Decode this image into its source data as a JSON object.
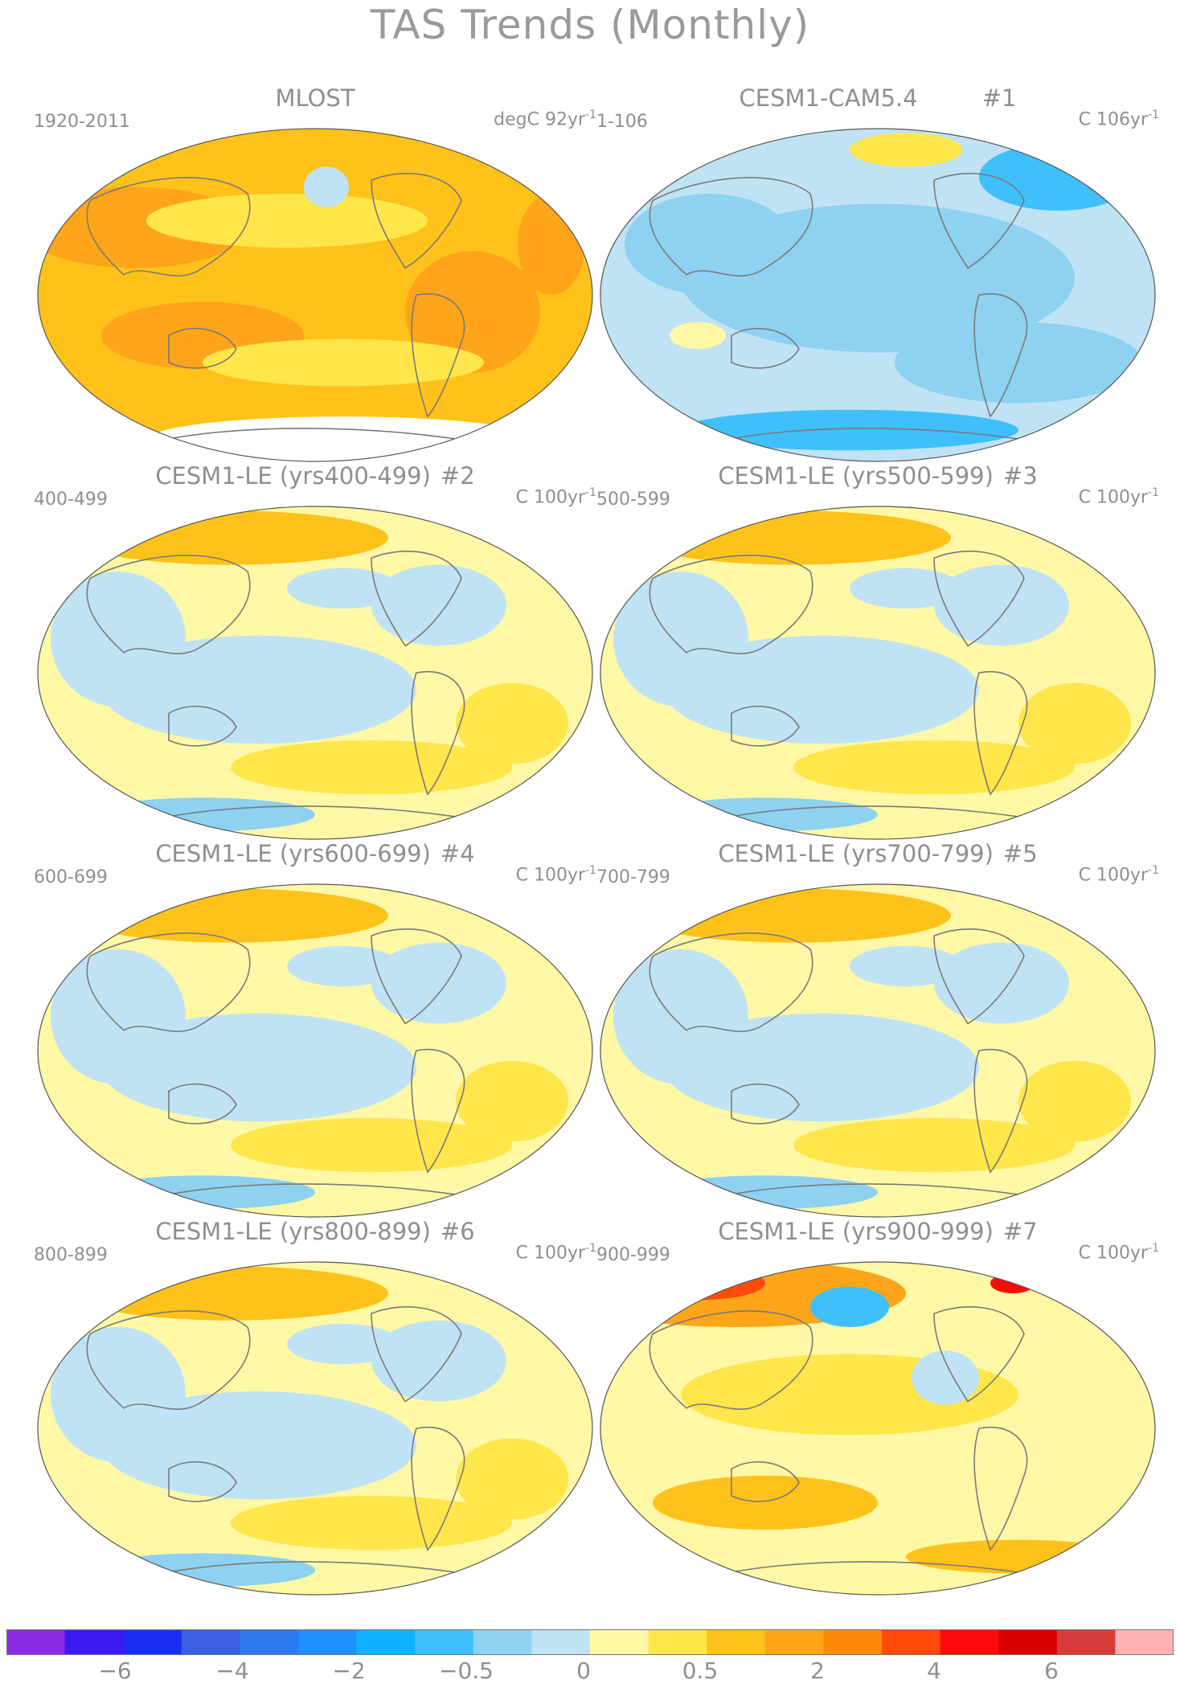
{
  "title": "TAS Trends (Monthly)",
  "panels": [
    {
      "title": "MLOST",
      "run_tag": "",
      "left_label": "1920-2011",
      "unit_text": "degC 92yr",
      "unit_exp": "-1",
      "style": "obs"
    },
    {
      "title": "CESM1-CAM5.4",
      "run_tag": "#1",
      "left_label": "1-106",
      "unit_text": "C 106yr",
      "unit_exp": "-1",
      "style": "cool"
    },
    {
      "title": "CESM1-LE (yrs400-499)",
      "run_tag": "#2",
      "left_label": "400-499",
      "unit_text": "C 100yr",
      "unit_exp": "-1",
      "style": "mix"
    },
    {
      "title": "CESM1-LE (yrs500-599)",
      "run_tag": "#3",
      "left_label": "500-599",
      "unit_text": "C 100yr",
      "unit_exp": "-1",
      "style": "mix"
    },
    {
      "title": "CESM1-LE (yrs600-699)",
      "run_tag": "#4",
      "left_label": "600-699",
      "unit_text": "C 100yr",
      "unit_exp": "-1",
      "style": "mix"
    },
    {
      "title": "CESM1-LE (yrs700-799)",
      "run_tag": "#5",
      "left_label": "700-799",
      "unit_text": "C 100yr",
      "unit_exp": "-1",
      "style": "mix"
    },
    {
      "title": "CESM1-LE (yrs800-899)",
      "run_tag": "#6",
      "left_label": "800-899",
      "unit_text": "C 100yr",
      "unit_exp": "-1",
      "style": "mix"
    },
    {
      "title": "CESM1-LE (yrs900-999)",
      "run_tag": "#7",
      "left_label": "900-999",
      "unit_text": "C 100yr",
      "unit_exp": "-1",
      "style": "warm"
    }
  ],
  "colorbar": {
    "colors": [
      "#8a2be2",
      "#3a1af0",
      "#1a2ef2",
      "#3a5fe0",
      "#2f79ee",
      "#1f90ff",
      "#10b2ff",
      "#3fc0fa",
      "#8ed1f0",
      "#bfe3f5",
      "#fff8a6",
      "#ffe64a",
      "#ffc21a",
      "#ffa51a",
      "#ff8a0a",
      "#ff4a0a",
      "#ff0a0a",
      "#d90000",
      "#d83a3a",
      "#ffb3b3"
    ],
    "labels": [
      "−6",
      "−4",
      "−2",
      "−0.5",
      "0",
      "0.5",
      "2",
      "4",
      "6"
    ]
  },
  "colors": {
    "ocean_warm_obs": "#ffc21a",
    "land_outline": "#7a7a7a",
    "frame": "#555555"
  }
}
